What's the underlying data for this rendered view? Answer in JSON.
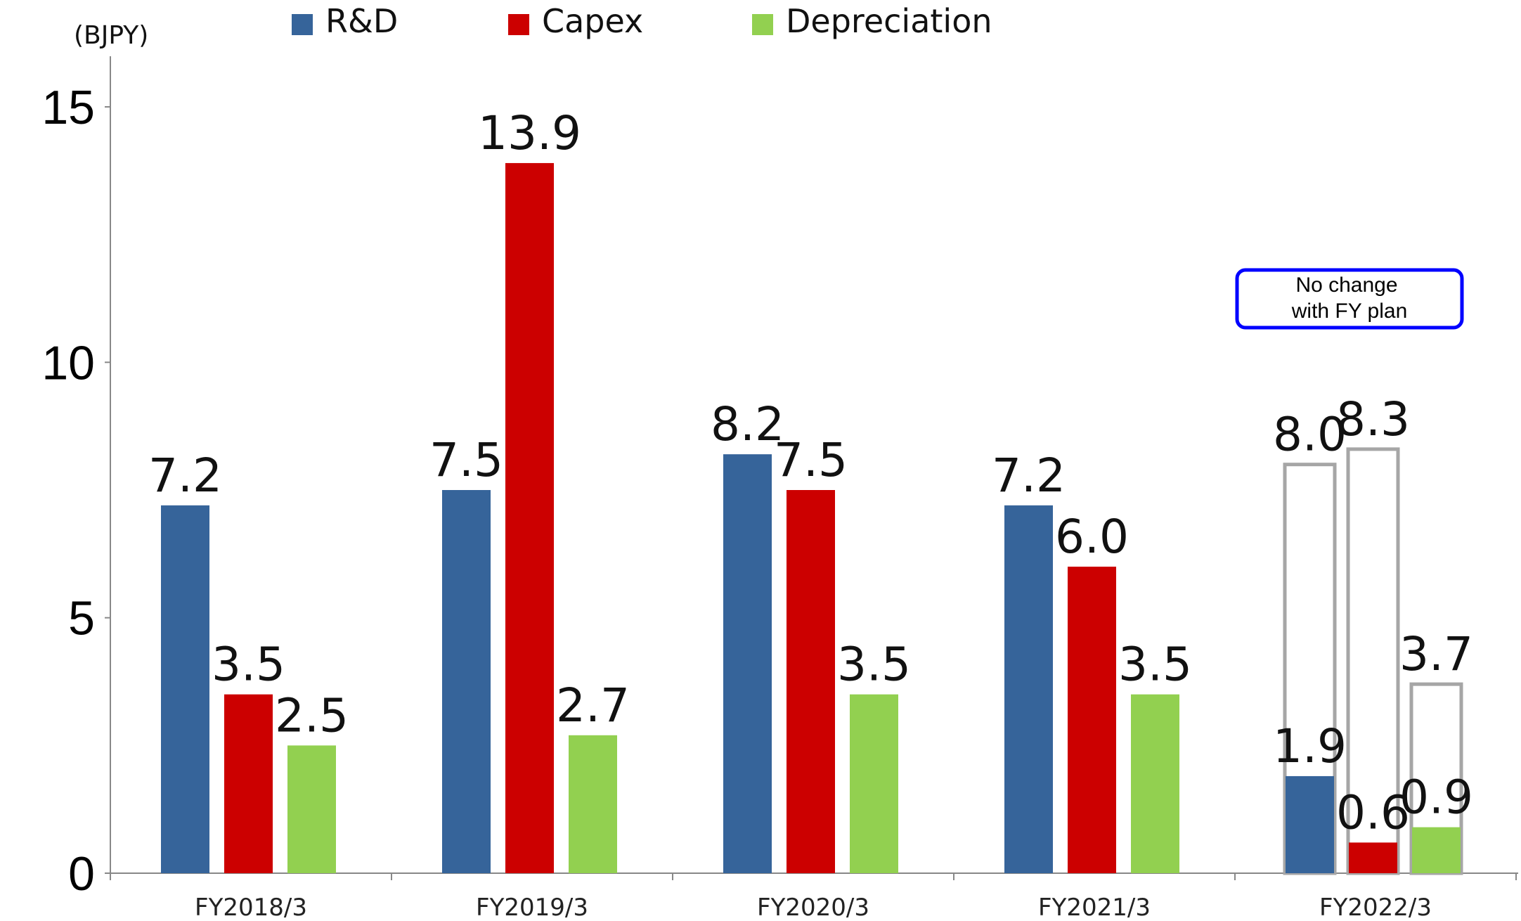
{
  "chart_data": {
    "type": "bar",
    "unit_label": "(BJPY)",
    "categories": [
      "FY2018/3",
      "FY2019/3",
      "FY2020/3",
      "FY2021/3",
      "FY2022/3"
    ],
    "series": [
      {
        "name": "R&D",
        "color": "#36649A",
        "values": [
          7.2,
          7.5,
          8.2,
          7.2,
          1.9
        ],
        "labels": [
          "7.2",
          "7.5",
          "8.2",
          "7.2",
          "1.9"
        ]
      },
      {
        "name": "Capex",
        "color": "#CC0000",
        "values": [
          3.5,
          13.9,
          7.5,
          6.0,
          0.6
        ],
        "labels": [
          "3.5",
          "13.9",
          "7.5",
          "6.0",
          "0.6"
        ]
      },
      {
        "name": "Depreciation",
        "color": "#92D050",
        "values": [
          2.5,
          2.7,
          3.5,
          3.5,
          0.9
        ],
        "labels": [
          "2.5",
          "2.7",
          "3.5",
          "3.5",
          "0.9"
        ]
      }
    ],
    "plan_outline": {
      "category": "FY2022/3",
      "values": [
        8.0,
        8.3,
        3.7
      ],
      "labels": [
        "8.0",
        "8.3",
        "3.7"
      ],
      "outline_color": "#A6A6A6"
    },
    "annotation": {
      "lines": [
        "No change",
        "with FY plan"
      ],
      "border_color": "#0000FF"
    },
    "y_ticks": [
      "0",
      "5",
      "10",
      "15"
    ],
    "ylim": [
      0,
      15
    ],
    "grid": false,
    "legend_position": "top"
  }
}
